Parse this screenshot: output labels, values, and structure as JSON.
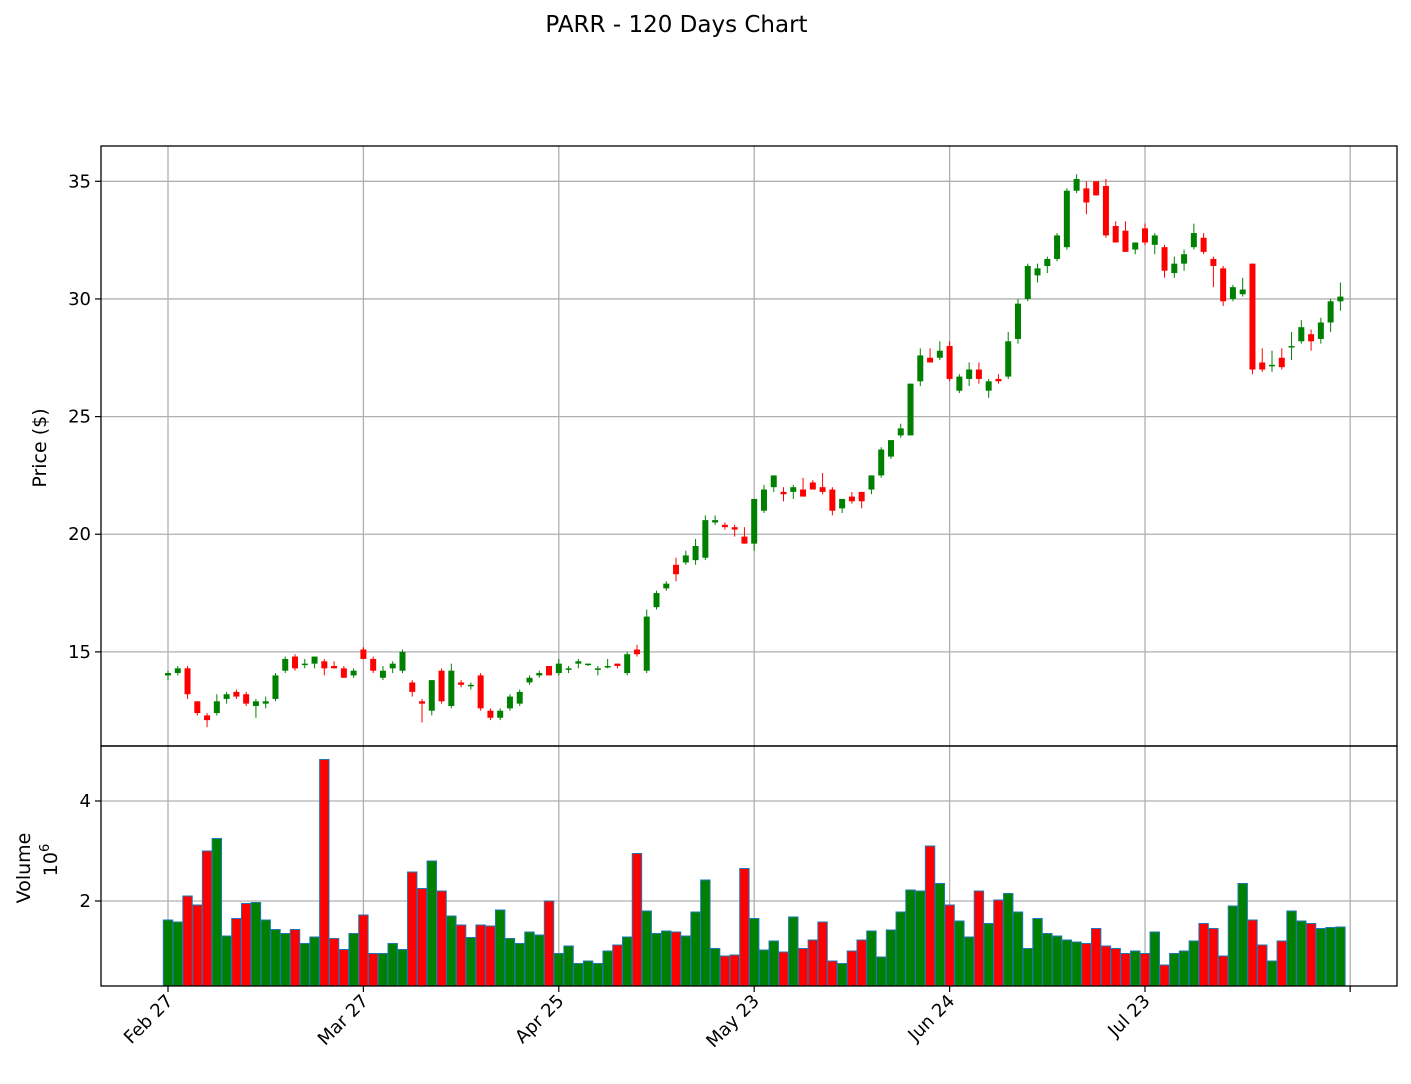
{
  "chart_data": {
    "type": "candlestick",
    "title": "PARR - 120 Days Chart",
    "price_panel": {
      "ylabel": "Price ($)",
      "ylim": [
        11.0,
        36.5
      ],
      "yticks": [
        15,
        20,
        25,
        30,
        35
      ]
    },
    "volume_panel": {
      "ylabel": "Volume",
      "scale_label": "10",
      "scale_exponent": "6",
      "ylim": [
        0.3,
        5.1
      ],
      "yticks": [
        2,
        4
      ]
    },
    "x_tick_labels": [
      "Feb 27",
      "Mar 27",
      "Apr 25",
      "May 23",
      "Jun 24",
      "Jul 23"
    ],
    "x_tick_index": [
      0,
      20,
      40,
      60,
      80,
      100
    ],
    "grid": true,
    "up_color": "#008000",
    "down_color": "#ff0000",
    "volume_edge_color": "#1f77b4",
    "candles": [
      [
        14.0,
        14.2,
        13.8,
        14.1,
        1.62
      ],
      [
        14.1,
        14.4,
        14.0,
        14.3,
        1.58
      ],
      [
        14.3,
        14.4,
        13.0,
        13.2,
        2.1
      ],
      [
        12.9,
        12.9,
        12.3,
        12.4,
        1.92
      ],
      [
        12.3,
        12.4,
        11.8,
        12.1,
        3.0
      ],
      [
        12.4,
        13.2,
        12.3,
        12.9,
        3.25
      ],
      [
        13.0,
        13.3,
        12.8,
        13.2,
        1.3
      ],
      [
        13.3,
        13.4,
        13.0,
        13.1,
        1.65
      ],
      [
        13.2,
        13.3,
        12.7,
        12.8,
        1.95
      ],
      [
        12.7,
        13.0,
        12.2,
        12.9,
        1.97
      ],
      [
        12.8,
        13.1,
        12.6,
        12.9,
        1.62
      ],
      [
        13.0,
        14.1,
        12.9,
        14.0,
        1.43
      ],
      [
        14.2,
        14.8,
        14.1,
        14.7,
        1.35
      ],
      [
        14.8,
        14.9,
        14.2,
        14.3,
        1.43
      ],
      [
        14.5,
        14.7,
        14.3,
        14.5,
        1.15
      ],
      [
        14.5,
        14.8,
        14.3,
        14.8,
        1.28
      ],
      [
        14.6,
        14.7,
        14.0,
        14.3,
        4.83
      ],
      [
        14.4,
        14.6,
        14.3,
        14.3,
        1.25
      ],
      [
        14.3,
        14.4,
        13.9,
        13.9,
        1.03
      ],
      [
        14.0,
        14.3,
        13.9,
        14.2,
        1.35
      ],
      [
        15.1,
        15.2,
        14.7,
        14.7,
        1.72
      ],
      [
        14.7,
        14.8,
        14.1,
        14.2,
        0.95
      ],
      [
        13.9,
        14.4,
        13.8,
        14.2,
        0.95
      ],
      [
        14.3,
        14.6,
        14.1,
        14.5,
        1.15
      ],
      [
        14.2,
        15.1,
        14.1,
        15.0,
        1.03
      ],
      [
        13.7,
        13.8,
        13.1,
        13.3,
        2.58
      ],
      [
        12.9,
        13.0,
        12.0,
        12.8,
        2.25
      ],
      [
        12.5,
        13.8,
        12.3,
        13.8,
        2.8
      ],
      [
        14.2,
        14.3,
        12.8,
        12.9,
        2.2
      ],
      [
        12.7,
        14.5,
        12.6,
        14.2,
        1.7
      ],
      [
        13.7,
        13.8,
        13.5,
        13.6,
        1.52
      ],
      [
        13.6,
        13.7,
        13.4,
        13.6,
        1.27
      ],
      [
        14.0,
        14.1,
        12.5,
        12.6,
        1.52
      ],
      [
        12.5,
        12.6,
        12.1,
        12.2,
        1.5
      ],
      [
        12.2,
        12.6,
        12.1,
        12.5,
        1.82
      ],
      [
        12.6,
        13.2,
        12.5,
        13.1,
        1.25
      ],
      [
        12.8,
        13.4,
        12.7,
        13.3,
        1.15
      ],
      [
        13.7,
        14.0,
        13.6,
        13.9,
        1.38
      ],
      [
        14.0,
        14.2,
        13.9,
        14.1,
        1.32
      ],
      [
        14.4,
        14.4,
        14.0,
        14.0,
        2.0
      ],
      [
        14.1,
        14.7,
        14.0,
        14.5,
        0.95
      ],
      [
        14.3,
        14.4,
        14.1,
        14.3,
        1.1
      ],
      [
        14.5,
        14.7,
        14.3,
        14.6,
        0.75
      ],
      [
        14.5,
        14.5,
        14.4,
        14.5,
        0.8
      ],
      [
        14.3,
        14.4,
        14.0,
        14.3,
        0.75
      ],
      [
        14.4,
        14.7,
        14.3,
        14.4,
        1.0
      ],
      [
        14.5,
        14.5,
        14.3,
        14.4,
        1.12
      ],
      [
        14.1,
        15.0,
        14.0,
        14.9,
        1.28
      ],
      [
        15.1,
        15.3,
        14.8,
        14.9,
        2.95
      ],
      [
        14.2,
        16.8,
        14.1,
        16.5,
        1.8
      ],
      [
        16.9,
        17.6,
        16.8,
        17.5,
        1.35
      ],
      [
        17.7,
        18.0,
        17.6,
        17.9,
        1.4
      ],
      [
        18.7,
        19.0,
        18.0,
        18.3,
        1.38
      ],
      [
        18.8,
        19.3,
        18.7,
        19.1,
        1.3
      ],
      [
        18.9,
        19.8,
        18.7,
        19.5,
        1.78
      ],
      [
        19.0,
        20.8,
        18.9,
        20.6,
        2.42
      ],
      [
        20.5,
        20.8,
        20.4,
        20.6,
        1.05
      ],
      [
        20.4,
        20.5,
        20.2,
        20.3,
        0.9
      ],
      [
        20.3,
        20.4,
        19.9,
        20.2,
        0.92
      ],
      [
        19.9,
        20.3,
        19.6,
        19.6,
        2.65
      ],
      [
        19.6,
        21.5,
        19.3,
        21.5,
        1.65
      ],
      [
        21.0,
        22.1,
        20.9,
        21.9,
        1.02
      ],
      [
        22.0,
        22.5,
        21.8,
        22.5,
        1.2
      ],
      [
        21.8,
        22.0,
        21.4,
        21.7,
        0.98
      ],
      [
        21.8,
        22.1,
        21.5,
        22.0,
        1.68
      ],
      [
        21.9,
        22.4,
        21.6,
        21.6,
        1.05
      ],
      [
        22.2,
        22.3,
        21.9,
        21.9,
        1.22
      ],
      [
        22.0,
        22.6,
        21.7,
        21.8,
        1.58
      ],
      [
        21.9,
        22.0,
        20.8,
        21.0,
        0.8
      ],
      [
        21.1,
        21.5,
        20.9,
        21.5,
        0.75
      ],
      [
        21.6,
        21.8,
        21.3,
        21.4,
        1.0
      ],
      [
        21.8,
        21.8,
        21.1,
        21.4,
        1.22
      ],
      [
        21.9,
        22.5,
        21.7,
        22.5,
        1.4
      ],
      [
        22.5,
        23.7,
        22.4,
        23.6,
        0.88
      ],
      [
        23.3,
        24.0,
        23.2,
        24.0,
        1.42
      ],
      [
        24.2,
        24.7,
        24.1,
        24.5,
        1.78
      ],
      [
        24.2,
        26.4,
        24.2,
        26.4,
        2.22
      ],
      [
        26.5,
        27.9,
        26.3,
        27.6,
        2.2
      ],
      [
        27.5,
        27.9,
        27.3,
        27.3,
        3.1
      ],
      [
        27.5,
        28.2,
        27.4,
        27.8,
        2.35
      ],
      [
        28.0,
        28.2,
        26.5,
        26.6,
        1.92
      ],
      [
        26.1,
        26.8,
        26.0,
        26.7,
        1.6
      ],
      [
        26.6,
        27.3,
        26.3,
        27.0,
        1.28
      ],
      [
        27.0,
        27.3,
        26.4,
        26.6,
        2.2
      ],
      [
        26.1,
        26.6,
        25.8,
        26.5,
        1.55
      ],
      [
        26.6,
        26.8,
        26.4,
        26.5,
        2.02
      ],
      [
        26.7,
        28.6,
        26.6,
        28.2,
        2.15
      ],
      [
        28.3,
        30.0,
        28.1,
        29.8,
        1.78
      ],
      [
        30.0,
        31.5,
        29.9,
        31.4,
        1.05
      ],
      [
        31.0,
        31.5,
        30.7,
        31.3,
        1.65
      ],
      [
        31.4,
        31.8,
        31.1,
        31.7,
        1.35
      ],
      [
        31.7,
        32.8,
        31.6,
        32.7,
        1.3
      ],
      [
        32.2,
        34.7,
        32.1,
        34.6,
        1.22
      ],
      [
        34.6,
        35.3,
        34.5,
        35.1,
        1.18
      ],
      [
        34.7,
        35.0,
        33.6,
        34.1,
        1.15
      ],
      [
        35.0,
        35.0,
        34.4,
        34.4,
        1.45
      ],
      [
        34.8,
        35.1,
        32.6,
        32.7,
        1.1
      ],
      [
        33.1,
        33.3,
        32.4,
        32.4,
        1.05
      ],
      [
        32.9,
        33.3,
        32.1,
        32.0,
        0.95
      ],
      [
        32.1,
        32.4,
        31.9,
        32.4,
        1.0
      ],
      [
        33.0,
        33.2,
        32.3,
        32.4,
        0.95
      ],
      [
        32.3,
        32.8,
        31.9,
        32.7,
        1.38
      ],
      [
        32.2,
        32.3,
        30.9,
        31.2,
        0.72
      ],
      [
        31.1,
        31.8,
        30.9,
        31.5,
        0.95
      ],
      [
        31.5,
        32.1,
        31.2,
        31.9,
        1.0
      ],
      [
        32.2,
        33.2,
        32.1,
        32.8,
        1.2
      ],
      [
        32.6,
        32.8,
        31.9,
        32.0,
        1.55
      ],
      [
        31.7,
        31.8,
        30.5,
        31.4,
        1.45
      ],
      [
        31.3,
        31.4,
        29.7,
        29.9,
        0.9
      ],
      [
        30.0,
        30.6,
        29.9,
        30.5,
        1.9
      ],
      [
        30.2,
        30.9,
        30.1,
        30.4,
        2.35
      ],
      [
        31.5,
        31.5,
        26.8,
        27.0,
        1.62
      ],
      [
        27.3,
        27.9,
        26.9,
        27.0,
        1.12
      ],
      [
        27.2,
        27.8,
        26.9,
        27.2,
        0.8
      ],
      [
        27.5,
        27.9,
        27.0,
        27.1,
        1.2
      ],
      [
        28.0,
        28.6,
        27.4,
        28.0,
        1.8
      ],
      [
        28.2,
        29.1,
        28.1,
        28.8,
        1.6
      ],
      [
        28.5,
        28.7,
        27.8,
        28.2,
        1.55
      ],
      [
        28.3,
        29.2,
        28.1,
        29.0,
        1.45
      ],
      [
        29.0,
        30.0,
        28.6,
        29.9,
        1.47
      ],
      [
        29.9,
        30.7,
        29.5,
        30.1,
        1.48
      ]
    ]
  }
}
